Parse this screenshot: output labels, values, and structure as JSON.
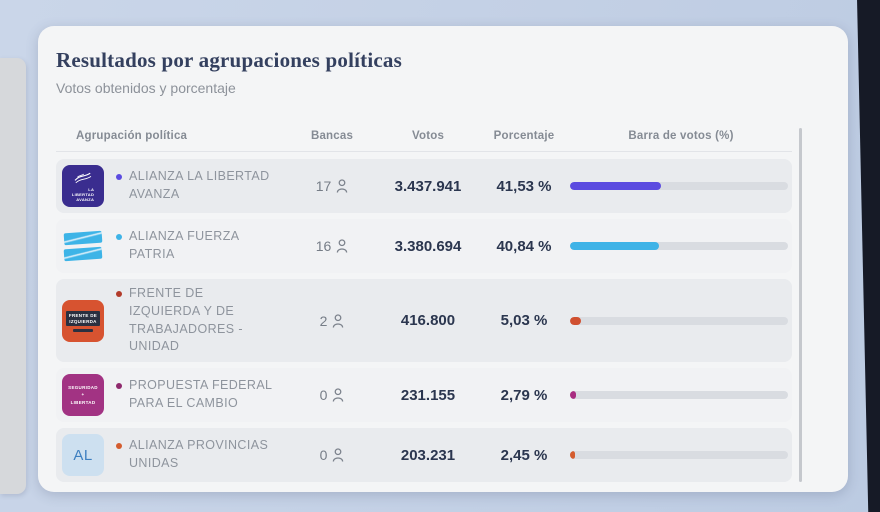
{
  "header": {
    "title": "Resultados por agrupaciones políticas",
    "subtitle": "Votos obtenidos y porcentaje"
  },
  "table": {
    "columns": {
      "party": "Agrupación política",
      "seats": "Bancas",
      "votes": "Votos",
      "percent": "Porcentaje",
      "bar": "Barra de votos (%)"
    },
    "rows": [
      {
        "name": "ALIANZA LA LIBERTAD\nAVANZA",
        "seats": "17",
        "votes": "3.437.941",
        "percent_label": "41,53 %",
        "percent_value": 41.53,
        "bar_color": "#5b4be0",
        "bullet_color": "#5b4be0",
        "logo": {
          "type": "lla",
          "bg": "#3a2d8f",
          "lines": [
            "LA",
            "LIBERTAD",
            "AVANZA"
          ]
        }
      },
      {
        "name": "ALIANZA FUERZA\nPATRIA",
        "seats": "16",
        "votes": "3.380.694",
        "percent_label": "40,84 %",
        "percent_value": 40.84,
        "bar_color": "#3eb3e7",
        "bullet_color": "#3eb3e7",
        "logo": {
          "type": "flags",
          "flag_color": "#3db4e7"
        }
      },
      {
        "name": "FRENTE DE\nIZQUIERDA Y DE\nTRABAJADORES -\nUNIDAD",
        "seats": "2",
        "votes": "416.800",
        "percent_label": "5,03 %",
        "percent_value": 5.03,
        "bar_color": "#d05030",
        "bullet_color": "#b23b2a",
        "logo": {
          "type": "fit",
          "bg": "#d75330",
          "lines": [
            "FRENTE DE",
            "IZQUIERDA"
          ]
        }
      },
      {
        "name": "PROPUESTA FEDERAL\nPARA EL CAMBIO",
        "seats": "0",
        "votes": "231.155",
        "percent_label": "2,79 %",
        "percent_value": 2.79,
        "bar_color": "#a82c80",
        "bullet_color": "#8f2a6d",
        "logo": {
          "type": "seglib",
          "bg": "#a23383",
          "lines": [
            "SEGURIDAD",
            "+",
            "LIBERTAD"
          ]
        }
      },
      {
        "name": "ALIANZA PROVINCIAS\nUNIDAS",
        "seats": "0",
        "votes": "203.231",
        "percent_label": "2,45 %",
        "percent_value": 2.45,
        "bar_color": "#d45c2e",
        "bullet_color": "#d45c2e",
        "logo": {
          "type": "al",
          "bg": "#cde0f0",
          "text": "AL",
          "text_color": "#3d7fc0"
        }
      }
    ]
  }
}
